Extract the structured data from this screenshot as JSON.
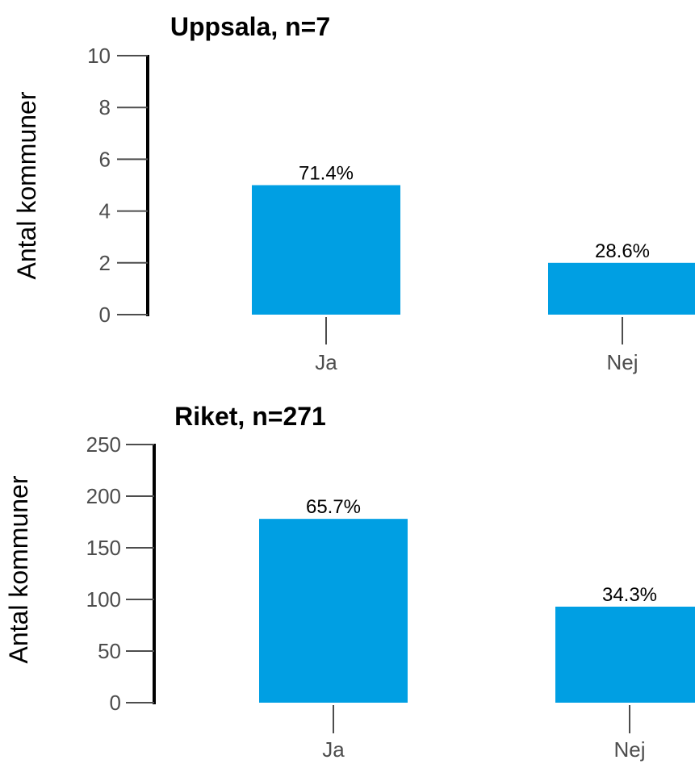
{
  "chart_data": [
    {
      "type": "bar",
      "title": "Uppsala, n=7",
      "xlabel": "",
      "ylabel": "Antal kommuner",
      "categories": [
        "Ja",
        "Nej"
      ],
      "values": [
        5,
        2
      ],
      "data_labels": [
        "71.4%",
        "28.6%"
      ],
      "ylim": [
        0,
        10
      ],
      "yticks": [
        0,
        2,
        4,
        6,
        8,
        10
      ],
      "ytick_labels": [
        "0",
        "2",
        "4",
        "6",
        "8",
        "10"
      ],
      "grid": false,
      "bar_color": "#009fe3"
    },
    {
      "type": "bar",
      "title": "Riket, n=271",
      "xlabel": "",
      "ylabel": "Antal kommuner",
      "categories": [
        "Ja",
        "Nej"
      ],
      "values": [
        178,
        93
      ],
      "data_labels": [
        "65.7%",
        "34.3%"
      ],
      "ylim": [
        0,
        250
      ],
      "yticks": [
        0,
        50,
        100,
        150,
        200,
        250
      ],
      "ytick_labels": [
        "0",
        "50",
        "100",
        "150",
        "200",
        "250"
      ],
      "grid": false,
      "bar_color": "#009fe3"
    }
  ]
}
